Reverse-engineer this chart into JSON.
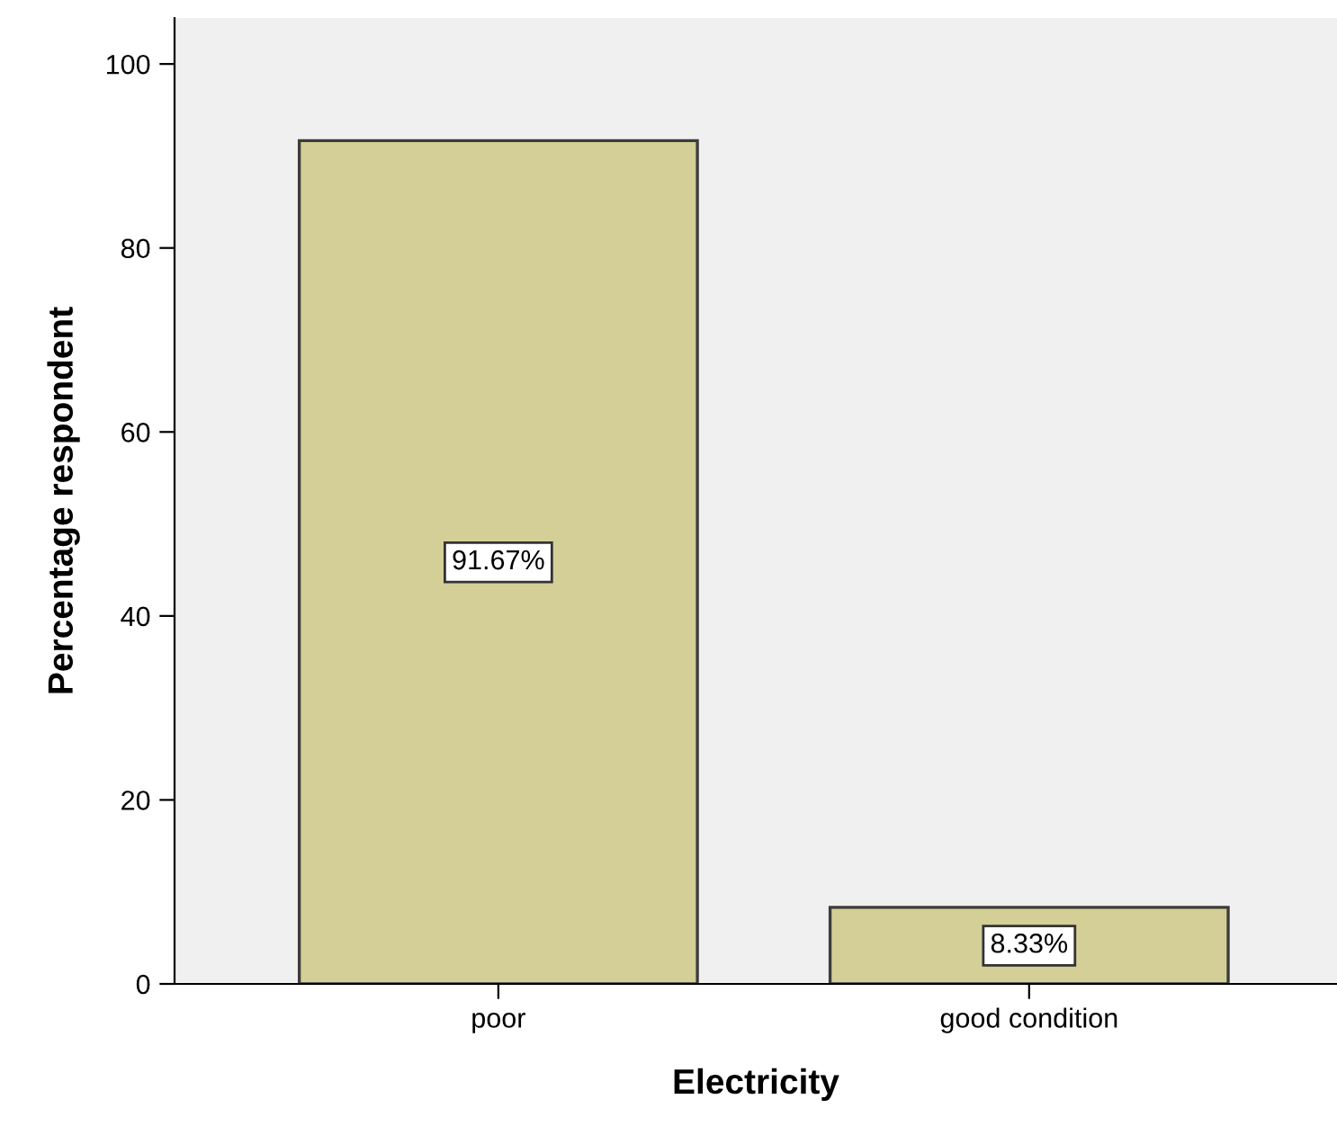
{
  "chart_data": {
    "type": "bar",
    "xlabel": "Electricity",
    "ylabel": "Percentage respondent",
    "categories": [
      "poor",
      "good condition"
    ],
    "values": [
      91.67,
      8.33
    ],
    "value_labels": [
      "91.67%",
      "8.33%"
    ],
    "color": "#d3cf96",
    "ylim": [
      0,
      105
    ],
    "yticks": [
      0,
      20,
      40,
      60,
      80,
      100
    ],
    "grid": false
  }
}
